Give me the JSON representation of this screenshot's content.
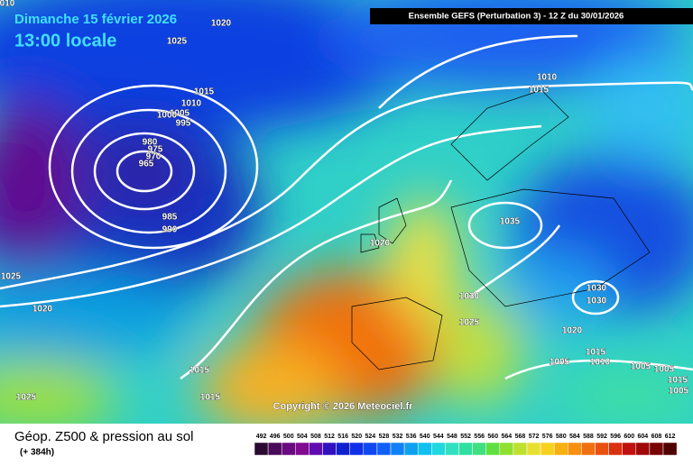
{
  "header": {
    "date": "Dimanche 15 février 2026",
    "time": "13:00 locale",
    "run": "Ensemble GEFS  (Perturbation 3)  -  12 Z du 30/01/2026"
  },
  "map": {
    "copyright": "Copyright © 2026 Meteociel.fr",
    "isobar_labels": [
      "010",
      "1020",
      "1025",
      "1015",
      "1010",
      "1005",
      "1000",
      "995",
      "980",
      "975",
      "970",
      "965",
      "985",
      "990",
      "1025",
      "1020",
      "1015",
      "1015",
      "1025",
      "1010",
      "1015",
      "1035",
      "1020",
      "1030",
      "1025",
      "1030",
      "1030",
      "1020",
      "1015",
      "1005",
      "1010",
      "1005",
      "1005",
      "1015",
      "1005"
    ]
  },
  "footer": {
    "title": "Géop. Z500 & pression au sol",
    "lead": "(+ 384h)",
    "colorbar_labels": [
      492,
      496,
      500,
      504,
      508,
      512,
      516,
      520,
      524,
      528,
      532,
      536,
      540,
      544,
      548,
      552,
      556,
      560,
      564,
      568,
      572,
      576,
      580,
      584,
      588,
      592,
      596,
      600,
      604,
      608,
      612
    ]
  }
}
